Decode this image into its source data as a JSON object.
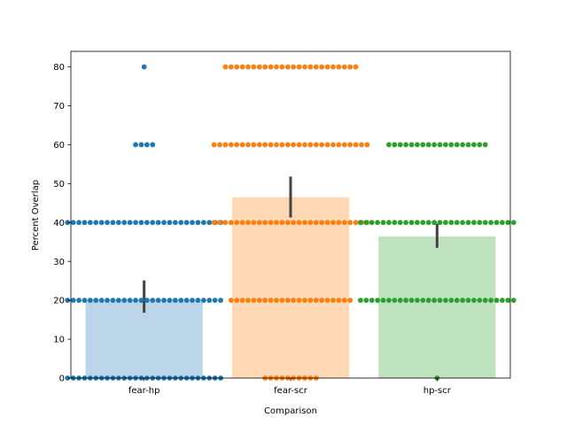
{
  "chart_data": {
    "type": "bar",
    "xlabel": "Comparison",
    "ylabel": "Percent Overlap",
    "ylim": [
      0,
      84
    ],
    "yticks": [
      0,
      10,
      20,
      30,
      40,
      50,
      60,
      70,
      80
    ],
    "categories": [
      "fear-hp",
      "fear-scr",
      "hp-scr"
    ],
    "colors": [
      "#1f77b4",
      "#ff7f0e",
      "#2ca02c"
    ],
    "bar_alpha": 0.3,
    "grid": false,
    "legend": "none",
    "values": [
      20.1,
      46.5,
      36.4
    ],
    "error_bars": [
      [
        16.8,
        25.1
      ],
      [
        41.3,
        51.8
      ],
      [
        33.5,
        39.7
      ]
    ],
    "swarm_counts": [
      [
        [
          0,
          28
        ],
        [
          20,
          28
        ],
        [
          40,
          28
        ],
        [
          60,
          4
        ],
        [
          80,
          1
        ]
      ],
      [
        [
          0,
          10
        ],
        [
          20,
          22
        ],
        [
          40,
          28
        ],
        [
          60,
          28
        ],
        [
          80,
          24
        ]
      ],
      [
        [
          0,
          1
        ],
        [
          20,
          28
        ],
        [
          40,
          28
        ],
        [
          60,
          18
        ]
      ]
    ]
  }
}
